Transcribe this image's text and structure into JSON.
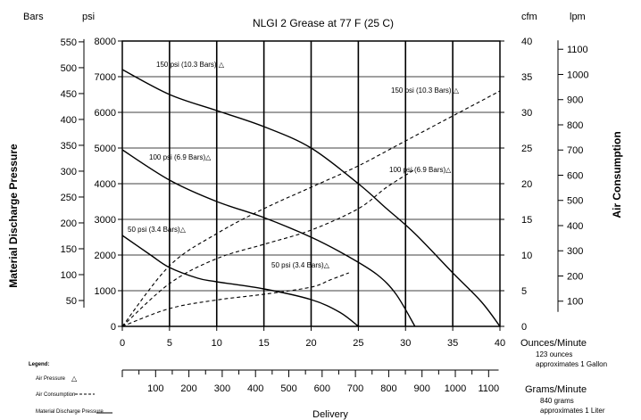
{
  "chart_data": {
    "type": "line",
    "title": "NLGI 2 Grease at 77 F (25 C)",
    "xlabel": "Delivery",
    "x_primary": {
      "unit_label": "Ounces/Minute",
      "note": [
        "123 ounces",
        "approximates 1 Gallon"
      ],
      "ticks": [
        0,
        5,
        10,
        15,
        20,
        25,
        30,
        35,
        40
      ],
      "range": [
        0,
        40
      ]
    },
    "x_secondary": {
      "unit_label": "Grams/Minute",
      "note": [
        "840 grams",
        "approximates 1 Liter"
      ],
      "ticks": [
        100,
        200,
        300,
        400,
        500,
        600,
        700,
        800,
        900,
        1000,
        1100
      ]
    },
    "y_left": {
      "label": "Material Discharge Pressure",
      "unit_outer": "Bars",
      "unit_inner": "psi",
      "psi_ticks": [
        0,
        1000,
        2000,
        3000,
        4000,
        5000,
        6000,
        7000,
        8000
      ],
      "range": [
        0,
        8000
      ],
      "bar_ticks": [
        50,
        100,
        150,
        200,
        250,
        300,
        350,
        400,
        450,
        500,
        550
      ]
    },
    "y_right": {
      "label": "Air Consumption",
      "unit_inner": "cfm",
      "unit_outer": "lpm",
      "cfm_ticks": [
        0,
        5,
        10,
        15,
        20,
        25,
        30,
        35,
        40
      ],
      "range": [
        0,
        40
      ],
      "lpm_ticks": [
        100,
        200,
        300,
        400,
        500,
        600,
        700,
        800,
        900,
        1000,
        1100
      ]
    },
    "legend": {
      "title": "Legend:",
      "items": [
        {
          "label": "Air Pressure",
          "symbol": "△"
        },
        {
          "label": "Air Consumption",
          "style": "dashed"
        },
        {
          "label": "Material Discharge Pressure",
          "style": "solid"
        }
      ],
      "position": "bottom-left"
    },
    "series": [
      {
        "name": "150 psi (10.3 Bars) △",
        "kind": "pressure",
        "axis": "psi",
        "x": [
          0,
          5,
          10,
          15,
          20,
          25,
          28,
          31,
          35,
          38,
          40
        ],
        "y": [
          7200,
          6500,
          6050,
          5600,
          5000,
          4000,
          3300,
          2600,
          1500,
          700,
          0
        ]
      },
      {
        "name": "100 psi (6.9 Bars)△",
        "kind": "pressure",
        "axis": "psi",
        "x": [
          0,
          5,
          10,
          15,
          20,
          24,
          27,
          29,
          31
        ],
        "y": [
          4950,
          4100,
          3500,
          3050,
          2500,
          1950,
          1450,
          900,
          0
        ]
      },
      {
        "name": "50 psi (3.4 Bars)△",
        "kind": "pressure",
        "axis": "psi",
        "x": [
          0,
          3,
          5,
          8,
          10,
          15,
          20,
          23,
          25
        ],
        "y": [
          2550,
          2000,
          1650,
          1350,
          1250,
          1050,
          750,
          400,
          0
        ]
      },
      {
        "name": "150 psi (10.3 Bars) △",
        "kind": "air",
        "axis": "cfm",
        "x": [
          0,
          5,
          10,
          15,
          20,
          25,
          30,
          35,
          40
        ],
        "y": [
          0,
          8.5,
          13,
          16.5,
          19.5,
          22.5,
          26,
          29.5,
          33
        ]
      },
      {
        "name": "100 psi (6.9 Bars)△",
        "kind": "air",
        "axis": "cfm",
        "x": [
          0,
          5,
          10,
          15,
          20,
          25,
          28,
          31
        ],
        "y": [
          0,
          6,
          9.5,
          11.5,
          13.5,
          16.5,
          19.5,
          22
        ]
      },
      {
        "name": "50 psi (3.4 Bars)△",
        "kind": "air",
        "axis": "cfm",
        "x": [
          0,
          5,
          10,
          15,
          20,
          22,
          24
        ],
        "y": [
          0,
          2.5,
          3.7,
          4.5,
          5.5,
          6.5,
          7.5
        ]
      }
    ],
    "grid": "x-major",
    "annotations": [
      {
        "text": "150 psi (10.3 Bars) △",
        "near": "pressure-150"
      },
      {
        "text": "150 psi (10.3 Bars) △",
        "near": "air-150"
      },
      {
        "text": "100 psi (6.9 Bars)△",
        "near": "pressure-100"
      },
      {
        "text": "100 psi (6.9 Bars)△",
        "near": "air-100"
      },
      {
        "text": "50 psi (3.4 Bars)△",
        "near": "pressure-50"
      },
      {
        "text": "50 psi (3.4 Bars)△",
        "near": "air-50"
      }
    ]
  }
}
